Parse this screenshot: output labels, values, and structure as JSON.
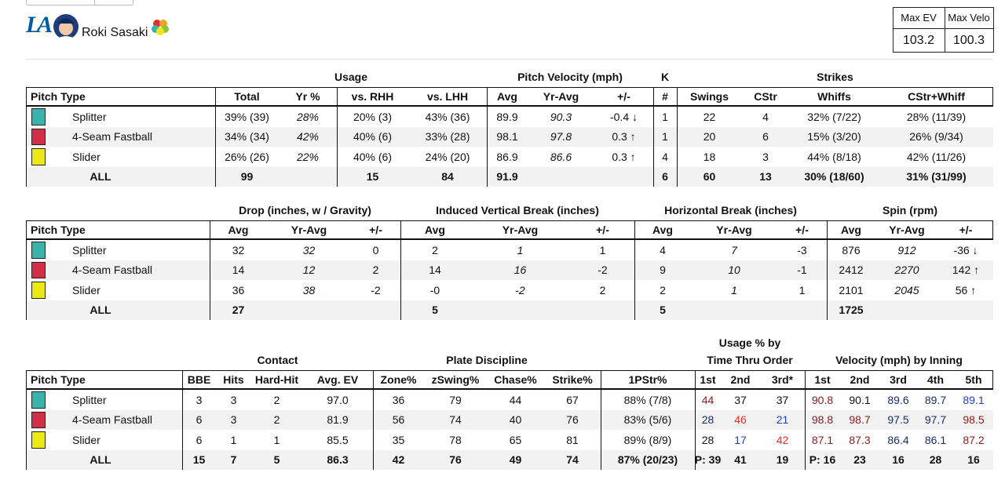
{
  "header": {
    "team_logo": "LA",
    "player_name": "Roki Sasaki",
    "stats": [
      {
        "label": "Max EV",
        "value": "103.2"
      },
      {
        "label": "Max Velo",
        "value": "100.3"
      }
    ]
  },
  "tables": [
    {
      "groups": [
        "Usage",
        "Pitch Velocity (mph)",
        "K",
        "Strikes"
      ],
      "columns": [
        "Pitch Type",
        "Total",
        "Yr %",
        "vs. RHH",
        "vs. LHH",
        "Avg",
        "Yr-Avg",
        "+/-",
        "#",
        "Swings",
        "CStr",
        "Whiffs",
        "CStr+Whiff"
      ],
      "rows": [
        {
          "pitch": "Splitter",
          "color": "#3bb3ad",
          "cells": [
            "39% (39)",
            "28%",
            "20% (3)",
            "43% (36)",
            "89.9",
            "90.3",
            "-0.4 ↓",
            "1",
            "22",
            "4",
            "32% (7/22)",
            "28% (11/39)"
          ]
        },
        {
          "pitch": "4-Seam Fastball",
          "color": "#d22d49",
          "cells": [
            "34% (34)",
            "42%",
            "40% (6)",
            "33% (28)",
            "98.1",
            "97.8",
            "0.3 ↑",
            "1",
            "20",
            "6",
            "15% (3/20)",
            "26% (9/34)"
          ]
        },
        {
          "pitch": "Slider",
          "color": "#eee716",
          "cells": [
            "26% (26)",
            "22%",
            "40% (6)",
            "24% (20)",
            "86.9",
            "86.6",
            "0.3 ↑",
            "4",
            "18",
            "3",
            "44% (8/18)",
            "42% (11/26)"
          ]
        },
        {
          "pitch": "ALL",
          "cells": [
            "99",
            null,
            "15",
            "84",
            "91.9",
            null,
            null,
            "6",
            "60",
            "13",
            "30% (18/60)",
            "31% (31/99)"
          ]
        }
      ]
    },
    {
      "groups": [
        "Drop (inches, w / Gravity)",
        "Induced Vertical Break (inches)",
        "Horizontal Break (inches)",
        "Spin (rpm)"
      ],
      "columns": [
        "Pitch Type",
        "Avg",
        "Yr-Avg",
        "+/-",
        "Avg",
        "Yr-Avg",
        "+/-",
        "Avg",
        "Yr-Avg",
        "+/-",
        "Avg",
        "Yr-Avg",
        "+/-"
      ],
      "rows": [
        {
          "pitch": "Splitter",
          "color": "#3bb3ad",
          "cells": [
            "32",
            "32",
            "0",
            "2",
            "1",
            "1",
            "4",
            "7",
            "-3",
            "876",
            "912",
            "-36 ↓"
          ]
        },
        {
          "pitch": "4-Seam Fastball",
          "color": "#d22d49",
          "cells": [
            "14",
            "12",
            "2",
            "14",
            "16",
            "-2",
            "9",
            "10",
            "-1",
            "2412",
            "2270",
            "142 ↑"
          ]
        },
        {
          "pitch": "Slider",
          "color": "#eee716",
          "cells": [
            "36",
            "38",
            "-2",
            "-0",
            "-2",
            "2",
            "2",
            "1",
            "1",
            "2101",
            "2045",
            "56 ↑"
          ]
        },
        {
          "pitch": "ALL",
          "cells": [
            "27",
            null,
            null,
            "5",
            null,
            null,
            "5",
            null,
            null,
            "1725",
            null,
            null
          ]
        }
      ]
    },
    {
      "groups": [
        "Contact",
        "Plate Discipline",
        [
          "Usage % by",
          "Time Thru Order"
        ],
        "Velocity (mph) by Inning"
      ],
      "columns": [
        "Pitch Type",
        "BBE",
        "Hits",
        "Hard-Hit",
        "Avg. EV",
        "Zone%",
        "zSwing%",
        "Chase%",
        "Strike%",
        "1PStr%",
        "1st",
        "2nd",
        "3rd*",
        "1st",
        "2nd",
        "3rd",
        "4th",
        "5th"
      ],
      "rows": [
        {
          "pitch": "Splitter",
          "color": "#3bb3ad",
          "cells": [
            "3",
            "3",
            "2",
            "97.0",
            "36",
            "79",
            "44",
            "67",
            "88% (7/8)",
            "44",
            "37",
            "37",
            "90.8",
            "90.1",
            "89.6",
            "89.7",
            "89.1"
          ],
          "cell_colors": [
            null,
            null,
            null,
            null,
            null,
            null,
            null,
            null,
            null,
            "#8b1a1a",
            null,
            null,
            "#8b1a1a",
            null,
            "#1a2a6c",
            "#1a2a6c",
            "#1f3fbf"
          ]
        },
        {
          "pitch": "4-Seam Fastball",
          "color": "#d22d49",
          "cells": [
            "6",
            "3",
            "2",
            "81.9",
            "56",
            "74",
            "40",
            "76",
            "83% (5/6)",
            "28",
            "46",
            "21",
            "98.8",
            "98.7",
            "97.5",
            "97.7",
            "98.5"
          ],
          "cell_colors": [
            null,
            null,
            null,
            null,
            null,
            null,
            null,
            null,
            null,
            "#1a2a6c",
            "#e0302a",
            "#1f3fbf",
            "#8b1a1a",
            "#8b1a1a",
            "#1a2a6c",
            "#1a2a6c",
            "#8b1a1a"
          ]
        },
        {
          "pitch": "Slider",
          "color": "#eee716",
          "cells": [
            "6",
            "1",
            "1",
            "85.5",
            "35",
            "78",
            "65",
            "81",
            "89% (8/9)",
            "28",
            "17",
            "42",
            "87.1",
            "87.3",
            "86.4",
            "86.1",
            "87.2"
          ],
          "cell_colors": [
            null,
            null,
            null,
            null,
            null,
            null,
            null,
            null,
            null,
            null,
            "#1f3fbf",
            "#e0302a",
            "#8b1a1a",
            "#8b1a1a",
            "#1a2a6c",
            "#1a2a6c",
            "#8b1a1a"
          ]
        },
        {
          "pitch": "ALL",
          "cells": [
            "15",
            "7",
            "5",
            "86.3",
            "42",
            "76",
            "49",
            "74",
            "87% (20/23)",
            "P: 39",
            "41",
            "19",
            "P: 16",
            "23",
            "16",
            "28",
            "16"
          ]
        }
      ]
    }
  ]
}
